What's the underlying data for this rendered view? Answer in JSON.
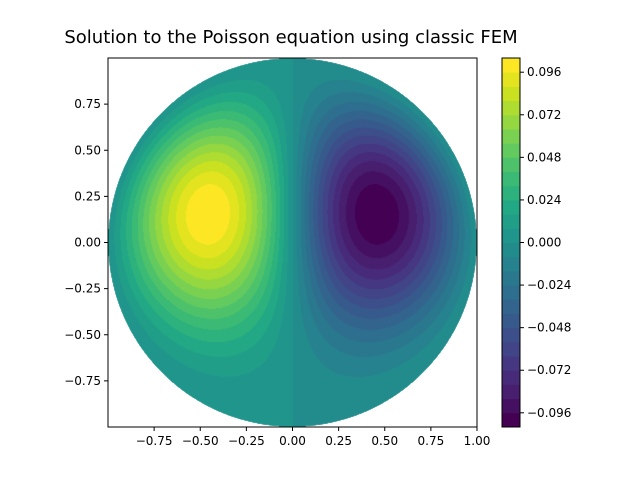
{
  "chart_data": {
    "type": "filled-contour",
    "title": "Solution to the Poisson equation using classic FEM",
    "xlabel": "",
    "ylabel": "",
    "xlim": [
      -1.0,
      1.0
    ],
    "ylim": [
      -1.0,
      1.0
    ],
    "domain": "unit disk",
    "colormap": "viridis",
    "grid": false,
    "xticks": [
      -0.75,
      -0.5,
      -0.25,
      0.0,
      0.25,
      0.5,
      0.75,
      1.0
    ],
    "xtick_labels": [
      "−0.75",
      "−0.50",
      "−0.25",
      "0.00",
      "0.25",
      "0.50",
      "0.75",
      "1.00"
    ],
    "yticks": [
      0.75,
      0.5,
      0.25,
      0.0,
      -0.25,
      -0.5,
      -0.75
    ],
    "ytick_labels": [
      "0.75",
      "0.50",
      "0.25",
      "0.00",
      "−0.25",
      "−0.50",
      "−0.75"
    ],
    "colorbar": {
      "vmin": -0.104,
      "vmax": 0.104,
      "levels": 26,
      "ticks": [
        0.096,
        0.072,
        0.048,
        0.024,
        0.0,
        -0.024,
        -0.048,
        -0.072,
        -0.096
      ],
      "tick_labels": [
        "0.096",
        "0.072",
        "0.048",
        "0.024",
        "0.000",
        "−0.024",
        "−0.048",
        "−0.072",
        "−0.096"
      ]
    },
    "extrema": [
      {
        "x": -0.52,
        "y": 0.28,
        "value": 0.104
      },
      {
        "x": 0.52,
        "y": 0.28,
        "value": -0.104
      }
    ]
  }
}
